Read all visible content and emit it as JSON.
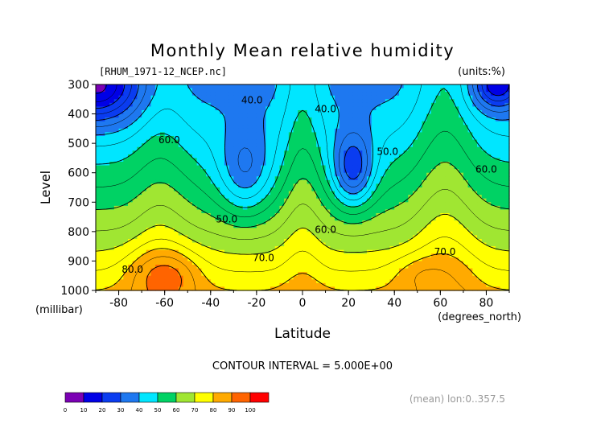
{
  "chart_data": {
    "type": "contour",
    "title": "Monthly Mean relative humidity",
    "file_label": "[RHUM_1971-12_NCEP.nc]",
    "units_label": "(units:%)",
    "xlabel": "Latitude",
    "x_unit_label": "(degrees_north)",
    "ylabel": "Level",
    "y_unit_label": "(millibar)",
    "xlim": [
      -90,
      90
    ],
    "ylim": [
      1000,
      300
    ],
    "x_ticks": [
      -80,
      -60,
      -40,
      -20,
      0,
      20,
      40,
      60,
      80
    ],
    "y_ticks": [
      300,
      400,
      500,
      600,
      700,
      800,
      900,
      1000
    ],
    "contour_interval_text": "CONTOUR INTERVAL = 5.000E+00",
    "footer_note": "(mean) lon:0..357.5",
    "colorbar": {
      "levels": [
        0,
        10,
        20,
        30,
        40,
        50,
        60,
        70,
        80,
        90,
        100
      ],
      "colors": [
        "#7b00b4",
        "#0000e6",
        "#0a3cf0",
        "#1e78f0",
        "#00e6ff",
        "#00d264",
        "#a0e632",
        "#ffff00",
        "#ffaa00",
        "#ff6400",
        "#ff0000"
      ]
    },
    "contour_labels": [
      {
        "text": "40.0",
        "lat": -22,
        "level": 355
      },
      {
        "text": "40.0",
        "lat": 10,
        "level": 385
      },
      {
        "text": "60.0",
        "lat": -58,
        "level": 490
      },
      {
        "text": "50.0",
        "lat": 37,
        "level": 530
      },
      {
        "text": "60.0",
        "lat": 80,
        "level": 590
      },
      {
        "text": "50.0",
        "lat": -33,
        "level": 760
      },
      {
        "text": "60.0",
        "lat": 10,
        "level": 795
      },
      {
        "text": "70.0",
        "lat": 62,
        "level": 870
      },
      {
        "text": "70.0",
        "lat": -17,
        "level": 890
      },
      {
        "text": "80.0",
        "lat": -74,
        "level": 930
      }
    ],
    "field_features": [
      {
        "lat": -90,
        "level": 300,
        "value": 8,
        "spread_lat": 18,
        "spread_level": 120
      },
      {
        "lat": 85,
        "level": 300,
        "value": 15,
        "spread_lat": 10,
        "spread_level": 80
      },
      {
        "lat": -25,
        "level": 560,
        "value": 34,
        "spread_lat": 12,
        "spread_level": 160
      },
      {
        "lat": 22,
        "level": 570,
        "value": 26,
        "spread_lat": 9,
        "spread_level": 130
      },
      {
        "lat": -60,
        "level": 960,
        "value": 93,
        "spread_lat": 14,
        "spread_level": 90
      },
      {
        "lat": 55,
        "level": 960,
        "value": 86,
        "spread_lat": 14,
        "spread_level": 70
      }
    ]
  }
}
